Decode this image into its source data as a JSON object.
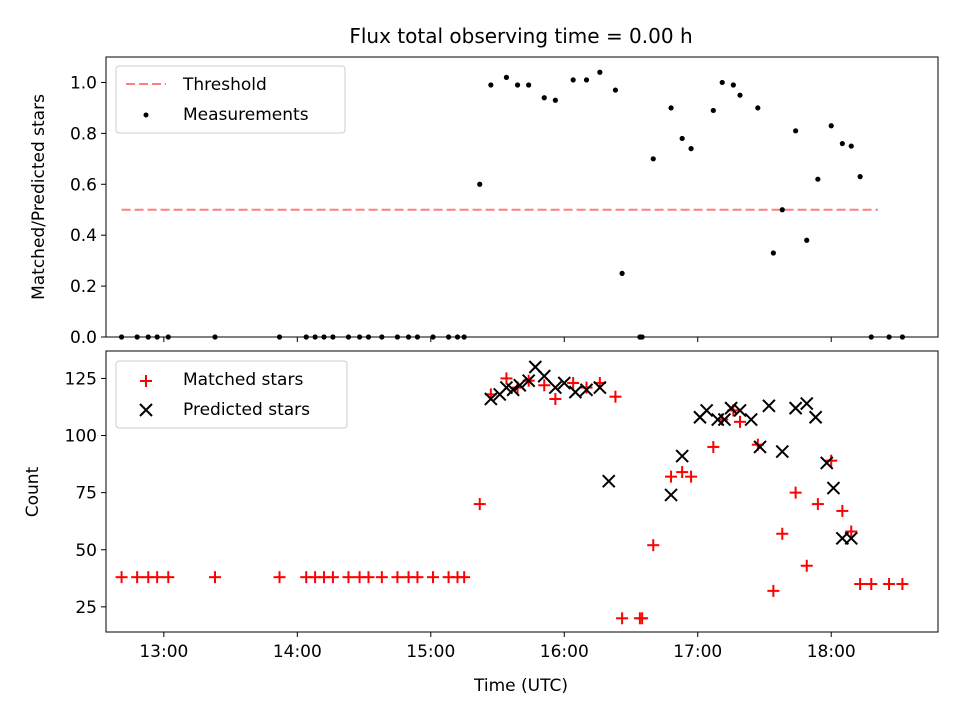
{
  "title": "Flux total observing time = 0.00 h",
  "xlabel": "Time (UTC)",
  "x_ticks": [
    "13:00",
    "14:00",
    "15:00",
    "16:00",
    "17:00",
    "18:00"
  ],
  "chart_data": [
    {
      "type": "scatter",
      "ylabel": "Matched/Predicted stars",
      "xlim": [
        "12:34",
        "18:48"
      ],
      "ylim": [
        0,
        1.1
      ],
      "y_ticks": [
        "0.0",
        "0.2",
        "0.4",
        "0.6",
        "0.8",
        "1.0"
      ],
      "grid": false,
      "legend_position": "upper-left",
      "threshold": {
        "name": "Threshold",
        "value": 0.5,
        "x_range": [
          "12:41",
          "18:21"
        ],
        "color": "#ff7f7f",
        "style": "dashed"
      },
      "series": [
        {
          "name": "Measurements",
          "color": "#000000",
          "marker": "dot",
          "x": [
            "12:41",
            "12:48",
            "12:53",
            "12:57",
            "13:02",
            "13:23",
            "13:52",
            "14:04",
            "14:08",
            "14:12",
            "14:16",
            "14:23",
            "14:28",
            "14:32",
            "14:38",
            "14:45",
            "14:50",
            "14:54",
            "15:01",
            "15:08",
            "15:12",
            "15:15",
            "15:22",
            "15:27",
            "15:34",
            "15:39",
            "15:44",
            "15:51",
            "15:56",
            "16:04",
            "16:10",
            "16:16",
            "16:23",
            "16:26",
            "16:34",
            "16:35",
            "16:40",
            "16:48",
            "16:53",
            "16:57",
            "17:07",
            "17:11",
            "17:16",
            "17:19",
            "17:27",
            "17:34",
            "17:38",
            "17:44",
            "17:49",
            "17:54",
            "18:00",
            "18:05",
            "18:09",
            "18:13",
            "18:18",
            "18:26",
            "18:32"
          ],
          "y": [
            0,
            0,
            0,
            0,
            0,
            0,
            0,
            0,
            0,
            0,
            0,
            0,
            0,
            0,
            0,
            0,
            0,
            0,
            0,
            0,
            0,
            0,
            0.6,
            0.99,
            1.02,
            0.99,
            0.99,
            0.94,
            0.93,
            1.01,
            1.01,
            1.04,
            0.97,
            0.25,
            0,
            0,
            0.7,
            0.9,
            0.78,
            0.74,
            0.89,
            1.0,
            0.99,
            0.95,
            0.9,
            0.33,
            0.5,
            0.81,
            0.38,
            0.62,
            0.83,
            0.76,
            0.75,
            0.63,
            0,
            0,
            0
          ]
        }
      ]
    },
    {
      "type": "scatter",
      "ylabel": "Count",
      "xlim": [
        "12:34",
        "18:48"
      ],
      "ylim": [
        14,
        137
      ],
      "y_ticks": [
        "25",
        "50",
        "75",
        "100",
        "125"
      ],
      "grid": false,
      "legend_position": "upper-left",
      "series": [
        {
          "name": "Matched stars",
          "color": "#ff0000",
          "marker": "plus",
          "x": [
            "12:41",
            "12:48",
            "12:53",
            "12:57",
            "13:02",
            "13:23",
            "13:52",
            "14:04",
            "14:08",
            "14:12",
            "14:16",
            "14:23",
            "14:28",
            "14:32",
            "14:38",
            "14:45",
            "14:50",
            "14:54",
            "15:01",
            "15:08",
            "15:12",
            "15:15",
            "15:22",
            "15:27",
            "15:34",
            "15:39",
            "15:44",
            "15:51",
            "15:56",
            "16:04",
            "16:10",
            "16:16",
            "16:23",
            "16:26",
            "16:34",
            "16:35",
            "16:40",
            "16:48",
            "16:53",
            "16:57",
            "17:07",
            "17:11",
            "17:16",
            "17:19",
            "17:27",
            "17:34",
            "17:38",
            "17:44",
            "17:49",
            "17:54",
            "18:00",
            "18:05",
            "18:09",
            "18:13",
            "18:18",
            "18:26",
            "18:32"
          ],
          "y": [
            38,
            38,
            38,
            38,
            38,
            38,
            38,
            38,
            38,
            38,
            38,
            38,
            38,
            38,
            38,
            38,
            38,
            38,
            38,
            38,
            38,
            38,
            70,
            118,
            125,
            121,
            124,
            122,
            116,
            123,
            121,
            123,
            117,
            20,
            20,
            20,
            52,
            82,
            84,
            82,
            95,
            107,
            111,
            106,
            96,
            32,
            57,
            75,
            43,
            70,
            89,
            67,
            58,
            35,
            35,
            35,
            35
          ]
        },
        {
          "name": "Predicted stars",
          "color": "#000000",
          "marker": "x",
          "x": [
            "15:27",
            "15:31",
            "15:34",
            "15:37",
            "15:40",
            "15:44",
            "15:47",
            "15:51",
            "15:56",
            "16:00",
            "16:05",
            "16:10",
            "16:16",
            "16:20",
            "16:48",
            "16:53",
            "17:01",
            "17:04",
            "17:09",
            "17:12",
            "17:15",
            "17:19",
            "17:24",
            "17:28",
            "17:32",
            "17:38",
            "17:44",
            "17:49",
            "17:53",
            "17:58",
            "18:01",
            "18:05",
            "18:09"
          ],
          "y": [
            116,
            118,
            121,
            120,
            122,
            124,
            130,
            126,
            121,
            123,
            119,
            120,
            121,
            80,
            74,
            91,
            108,
            111,
            107,
            107,
            112,
            111,
            107,
            95,
            113,
            93,
            112,
            114,
            108,
            88,
            77,
            55,
            55
          ]
        }
      ]
    }
  ]
}
